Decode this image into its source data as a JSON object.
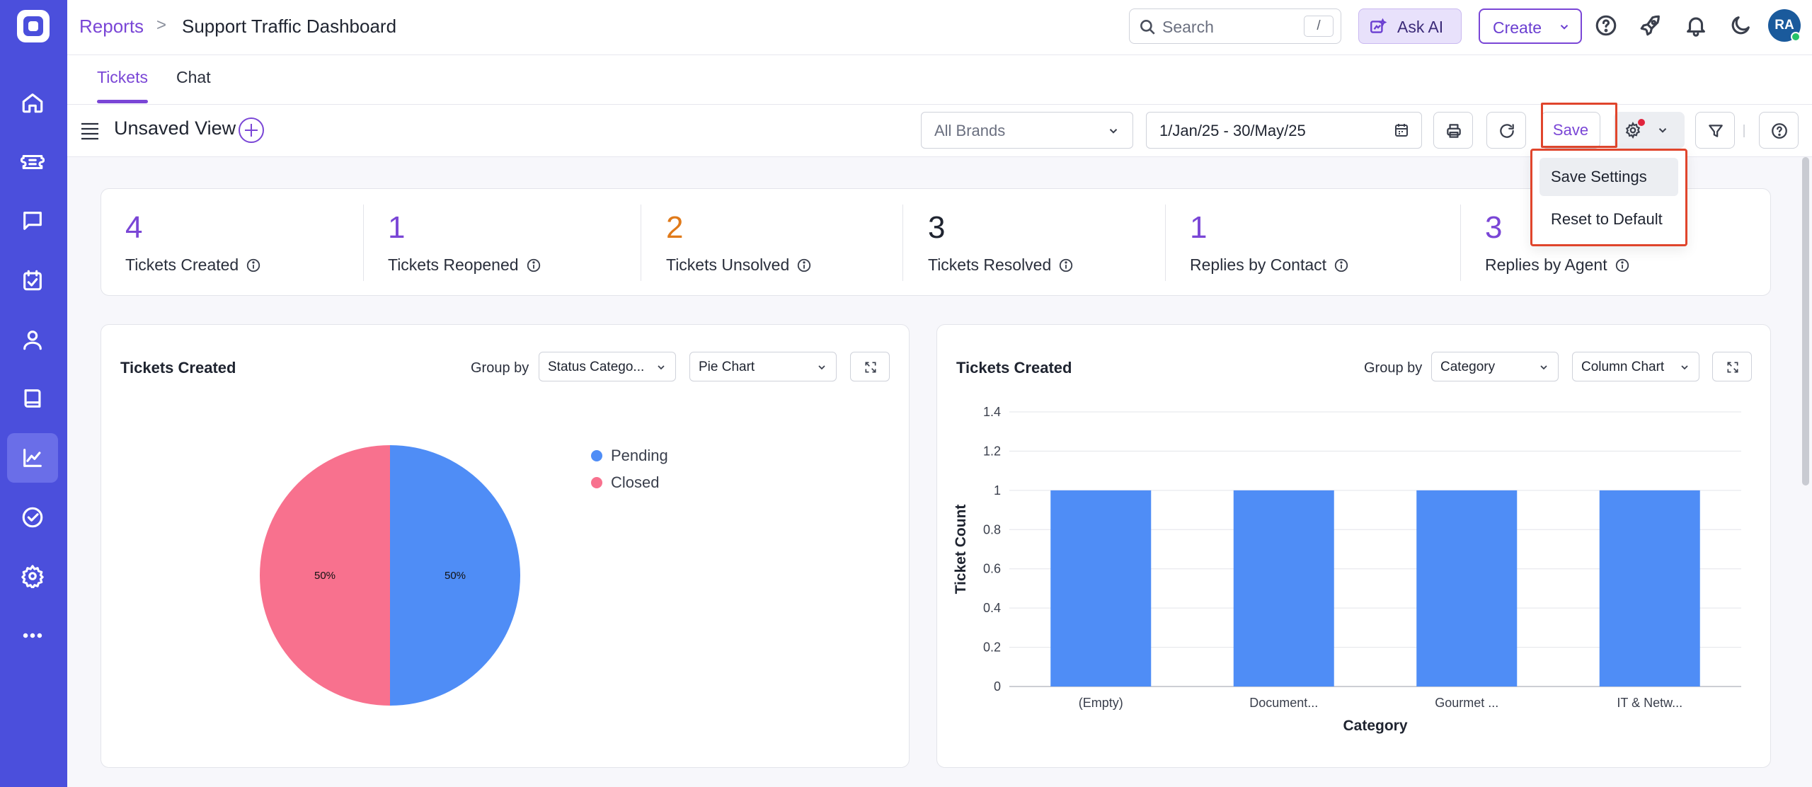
{
  "header": {
    "breadcrumb_root": "Reports",
    "breadcrumb_sep": ">",
    "page_title": "Support Traffic Dashboard",
    "search_placeholder": "Search",
    "search_shortcut": "/",
    "ask_ai_label": "Ask AI",
    "create_label": "Create",
    "avatar_initials": "RA"
  },
  "tabs": [
    "Tickets",
    "Chat"
  ],
  "toolbar": {
    "view_title": "Unsaved View",
    "brand_select": "All Brands",
    "date_range": "1/Jan/25 - 30/May/25",
    "save_label": "Save"
  },
  "settings_menu": [
    "Save Settings",
    "Reset to Default"
  ],
  "kpis": [
    {
      "value": "4",
      "label": "Tickets Created",
      "color": "#7a46d6"
    },
    {
      "value": "1",
      "label": "Tickets Reopened",
      "color": "#7a46d6"
    },
    {
      "value": "2",
      "label": "Tickets Unsolved",
      "color": "#e07a1a"
    },
    {
      "value": "3",
      "label": "Tickets Resolved",
      "color": "#1f2430"
    },
    {
      "value": "1",
      "label": "Replies by Contact",
      "color": "#7a46d6"
    },
    {
      "value": "3",
      "label": "Replies by Agent",
      "color": "#7a46d6"
    }
  ],
  "cards": {
    "left": {
      "title": "Tickets Created",
      "group_by_label": "Group by",
      "group_by_value": "Status Catego...",
      "chart_type_value": "Pie Chart"
    },
    "right": {
      "title": "Tickets Created",
      "group_by_label": "Group by",
      "group_by_value": "Category",
      "chart_type_value": "Column Chart"
    }
  },
  "chart_data": [
    {
      "type": "pie",
      "title": "Tickets Created",
      "slices": [
        {
          "label": "Pending",
          "value": 50,
          "display": "50%",
          "color": "#4f8df6"
        },
        {
          "label": "Closed",
          "value": 50,
          "display": "50%",
          "color": "#f8718e"
        }
      ],
      "legend": "right"
    },
    {
      "type": "bar",
      "title": "Tickets Created",
      "categories": [
        "(Empty)",
        "Document...",
        "Gourmet ...",
        "IT & Netw..."
      ],
      "values": [
        1,
        1,
        1,
        1
      ],
      "xlabel": "Category",
      "ylabel": "Ticket Count",
      "ylim": [
        0,
        1.4
      ],
      "yticks": [
        "0",
        "0.2",
        "0.4",
        "0.6",
        "0.8",
        "1",
        "1.2",
        "1.4"
      ],
      "grid": true,
      "color": "#4f8df6"
    }
  ]
}
